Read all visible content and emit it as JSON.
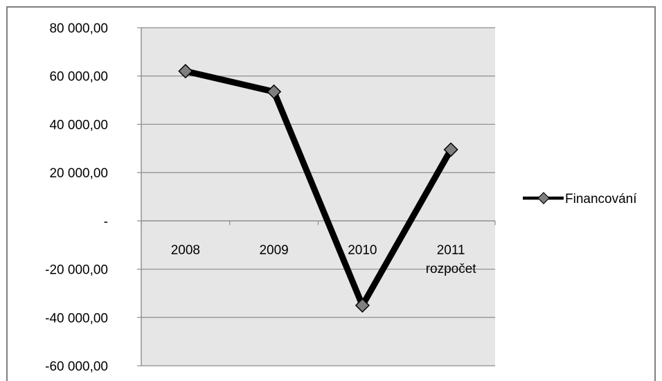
{
  "chart_data": {
    "type": "line",
    "categories": [
      [
        "2008"
      ],
      [
        "2009"
      ],
      [
        "2010"
      ],
      [
        "2011",
        "rozpočet"
      ]
    ],
    "series": [
      {
        "name": "Financování",
        "values": [
          62000,
          53500,
          -35000,
          29500
        ],
        "color": "#000000",
        "marker": "diamond",
        "marker_color": "#7f7f7f"
      }
    ],
    "y_ticks": [
      "80 000,00",
      "60 000,00",
      "40 000,00",
      "20 000,00",
      "-",
      "-20 000,00",
      "-40 000,00",
      "-60 000,00"
    ],
    "y_tick_values": [
      80000,
      60000,
      40000,
      20000,
      0,
      -20000,
      -40000,
      -60000
    ],
    "ylim": [
      -60000,
      80000
    ],
    "grid": true,
    "plot_background": "#e6e6e6",
    "legend_position": "right"
  }
}
